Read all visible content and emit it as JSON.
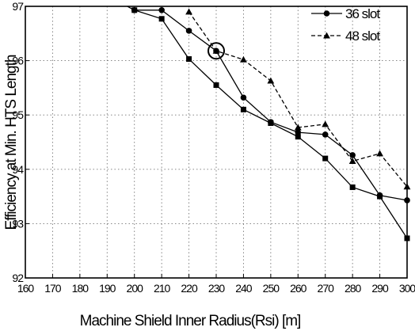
{
  "chart_data": {
    "type": "line",
    "xlabel": "Machine Shield Inner Radius(Rsi) [m]",
    "ylabel": "Efficiency at Min. HTS Length",
    "xlim": [
      160,
      300
    ],
    "ylim": [
      92,
      97
    ],
    "xticks": [
      160,
      170,
      180,
      190,
      200,
      210,
      220,
      230,
      240,
      250,
      260,
      270,
      280,
      290,
      300
    ],
    "yticks": [
      92,
      93,
      94,
      95,
      96,
      97
    ],
    "grid": true,
    "legend": "top-right",
    "series": [
      {
        "name": "36 slot",
        "marker": "circle",
        "line": "solid",
        "x": [
          190,
          200,
          210,
          220,
          230,
          240,
          250,
          260,
          270,
          280,
          290,
          300
        ],
        "y": [
          97.2,
          96.93,
          96.93,
          96.55,
          96.18,
          95.32,
          94.87,
          94.68,
          94.64,
          94.26,
          93.52,
          93.43
        ]
      },
      {
        "name": "48 slot",
        "marker": "triangle",
        "line": "dashed",
        "x": [
          220,
          230,
          240,
          250,
          260,
          270,
          280,
          290,
          300
        ],
        "y": [
          96.9,
          96.18,
          96.02,
          95.63,
          94.77,
          94.83,
          94.15,
          94.29,
          93.68
        ]
      },
      {
        "name": "",
        "marker": "square",
        "line": "solid",
        "x": [
          200,
          210,
          220,
          230,
          240,
          250,
          260,
          270,
          280,
          290,
          300
        ],
        "y": [
          96.93,
          96.77,
          96.03,
          95.55,
          95.1,
          94.85,
          94.6,
          94.2,
          93.67,
          93.5,
          92.73
        ]
      }
    ],
    "annotations": [
      {
        "type": "circle-highlight",
        "x": 230,
        "y": 96.18
      }
    ]
  }
}
